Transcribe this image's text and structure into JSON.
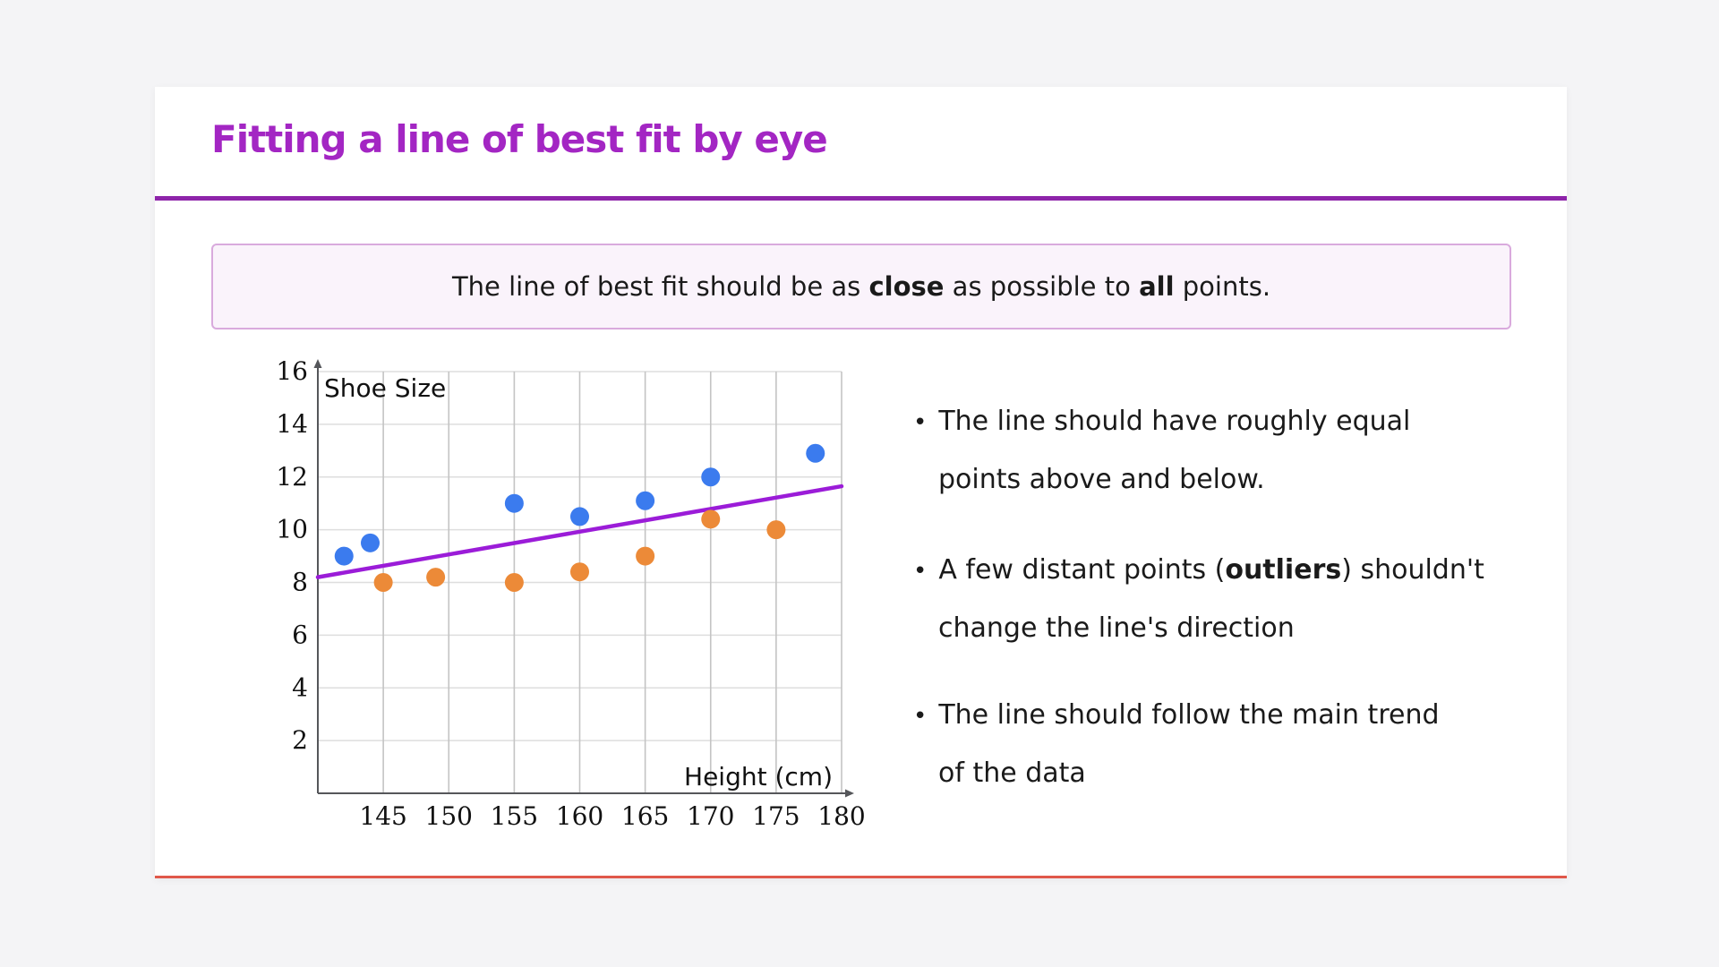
{
  "header": {
    "title": "Fitting a line of best fit by eye"
  },
  "callout": {
    "part1": "The line of best fit should be as ",
    "bold1": "close",
    "part2": " as possible to ",
    "bold2": "all",
    "part3": " points."
  },
  "bullets": {
    "marker": "•",
    "b1": {
      "line1": "The line should have roughly equal",
      "line2": "points above and below."
    },
    "b2": {
      "line1a": "A few distant points (",
      "line1b": "outliers",
      "line1c": ") shouldn't",
      "line2": "change the line's direction"
    },
    "b3": {
      "line1": "The line should follow the main trend",
      "line2": "of the data"
    }
  },
  "colors": {
    "accent_purple": "#8e24aa",
    "title_purple": "#a326c3",
    "card_bottom_line": "#e0584a",
    "callout_bg": "#faf3fb",
    "callout_border": "#d9aadd",
    "point_above": "#3b7bee",
    "point_below": "#ec8a38",
    "best_fit": "#9b1cd8",
    "grid_vertical": "#c4c4c4",
    "grid_horizontal": "#dedede",
    "axis": "#55565a"
  },
  "chart_data": {
    "type": "scatter",
    "title": "",
    "xlabel": "Height (cm)",
    "ylabel": "Shoe Size",
    "xlim": [
      140,
      180
    ],
    "ylim": [
      0,
      16
    ],
    "xticks": [
      145,
      150,
      155,
      160,
      165,
      170,
      175,
      180
    ],
    "yticks": [
      2,
      4,
      6,
      8,
      10,
      12,
      14,
      16
    ],
    "grid": true,
    "legend": "none",
    "series": [
      {
        "name": "points above line",
        "color": "#3b7bee",
        "points": [
          [
            142,
            9
          ],
          [
            144,
            9.5
          ],
          [
            155,
            11
          ],
          [
            160,
            10.5
          ],
          [
            165,
            11.1
          ],
          [
            170,
            12
          ],
          [
            178,
            12.9
          ]
        ]
      },
      {
        "name": "points below line",
        "color": "#ec8a38",
        "points": [
          [
            145,
            8
          ],
          [
            149,
            8.2
          ],
          [
            155,
            8
          ],
          [
            160,
            8.4
          ],
          [
            165,
            9
          ],
          [
            170,
            10.4
          ],
          [
            175,
            10
          ]
        ]
      }
    ],
    "best_fit_line": {
      "from": [
        140,
        8.2
      ],
      "to": [
        180,
        11.65
      ],
      "color": "#9b1cd8"
    }
  }
}
